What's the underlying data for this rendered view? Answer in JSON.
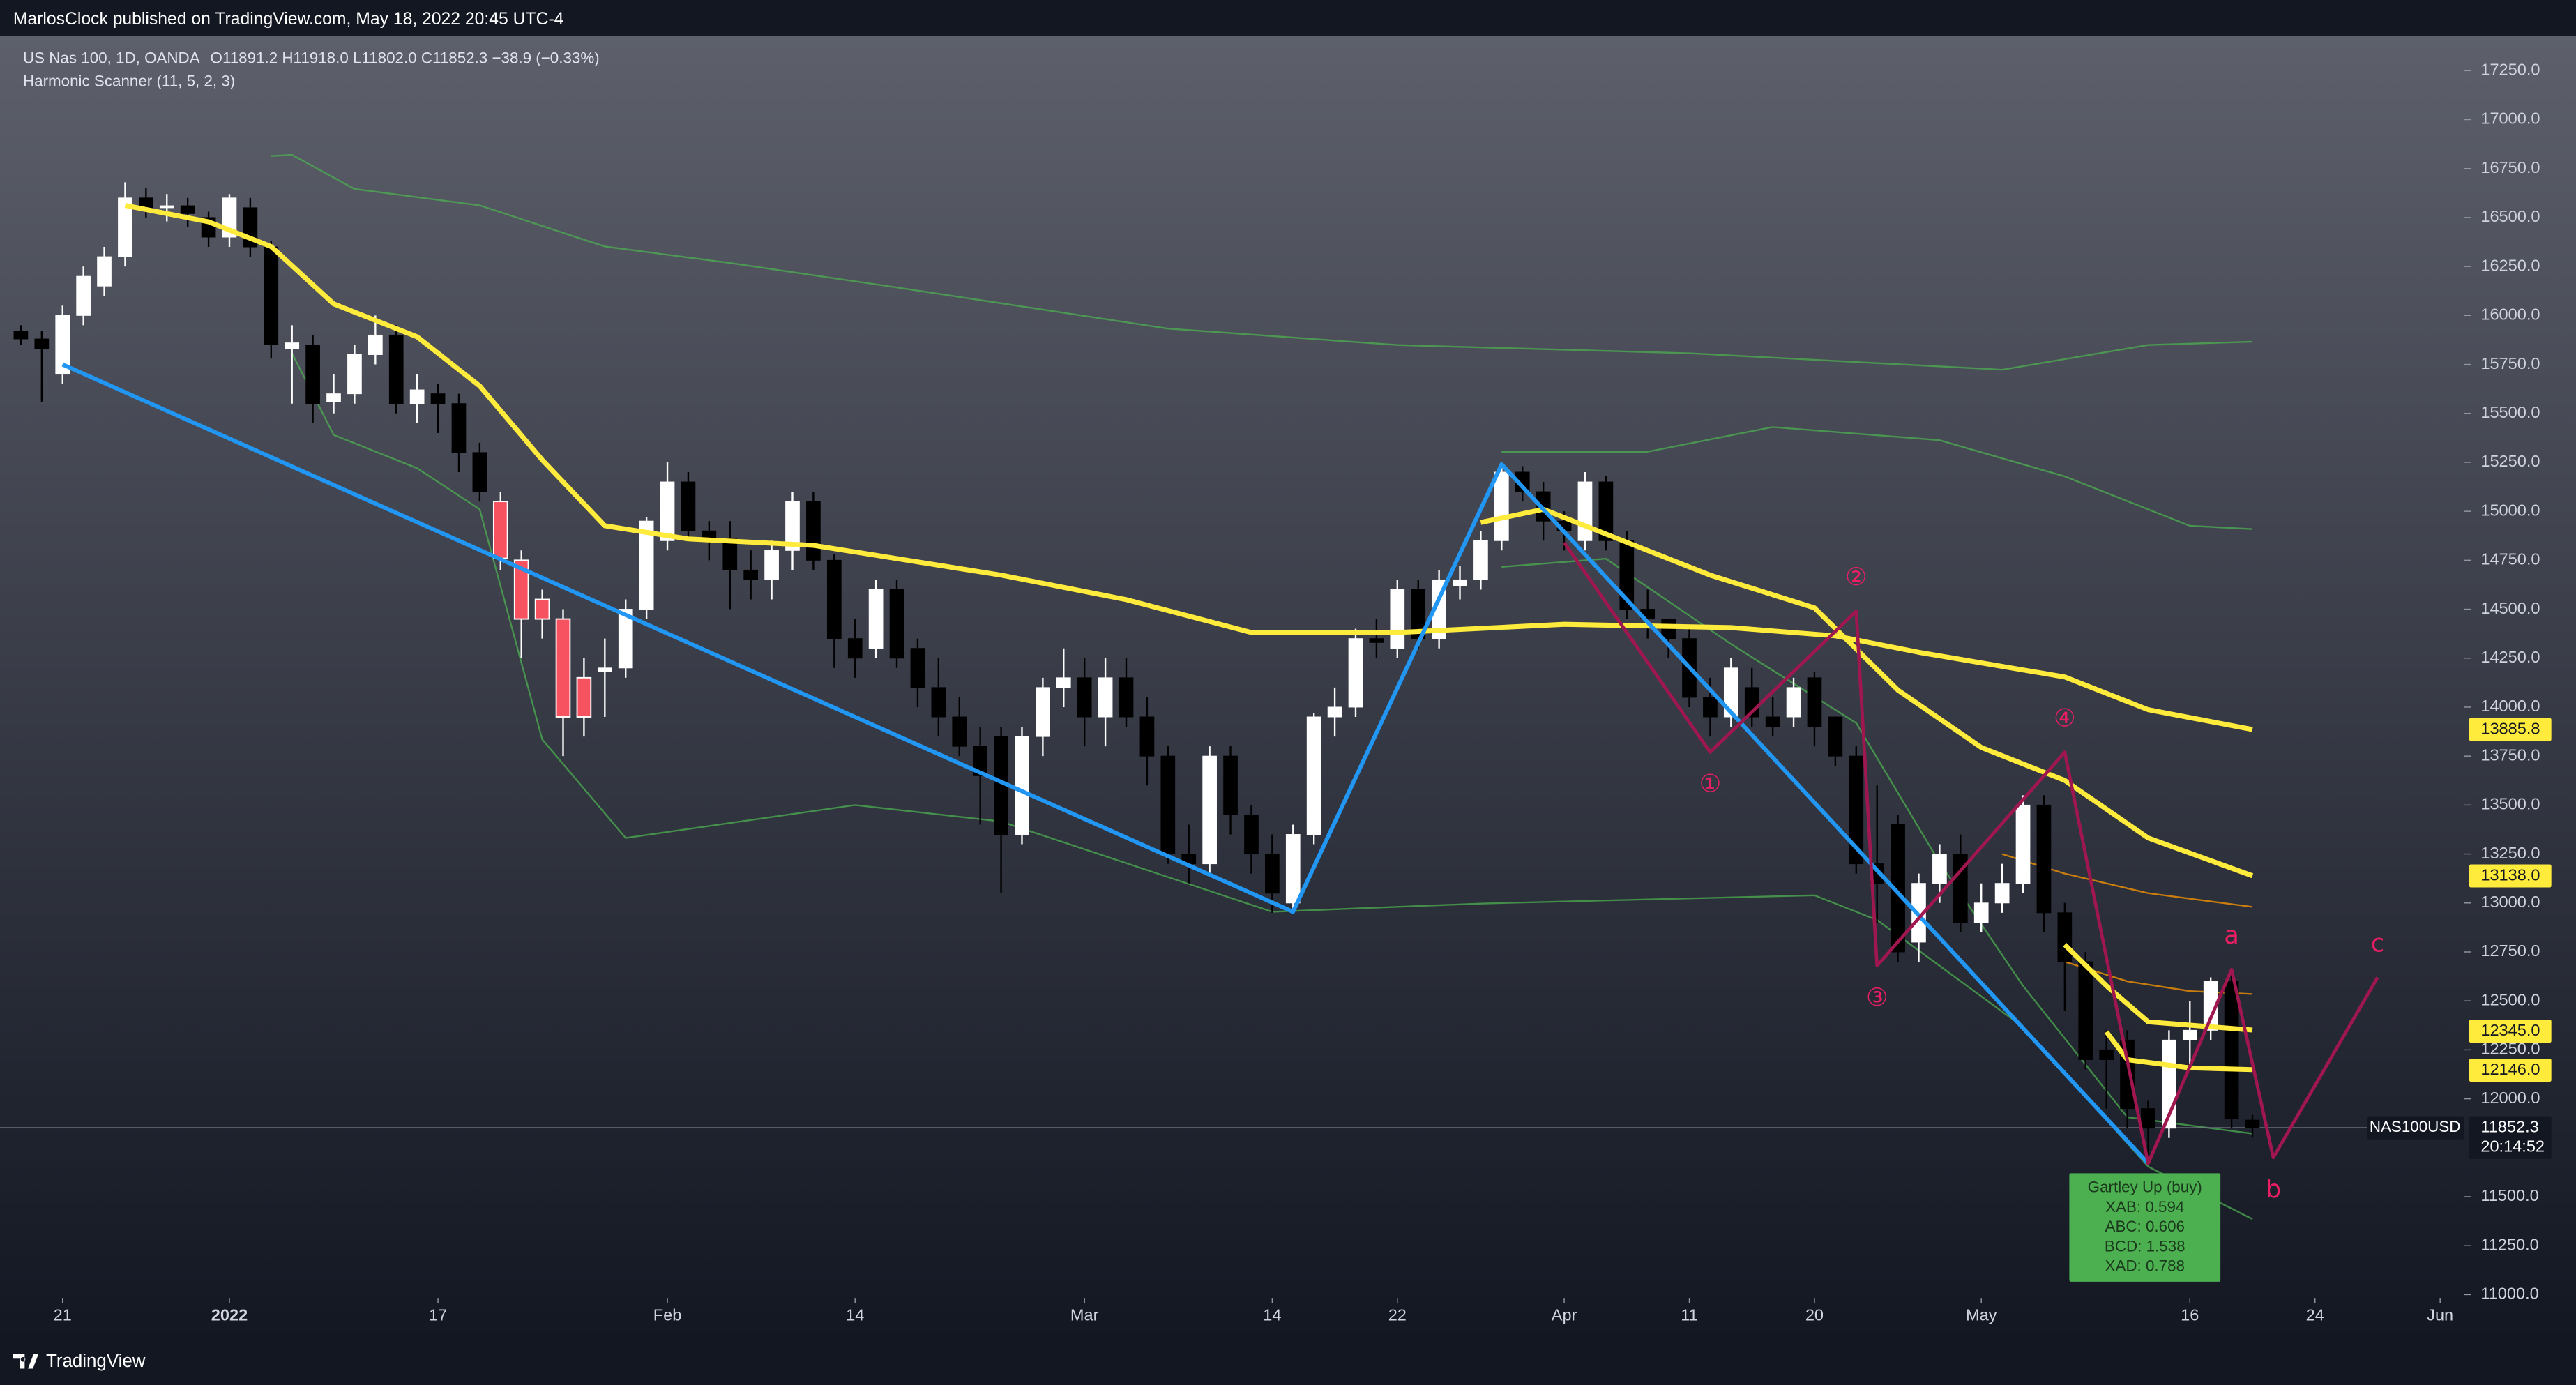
{
  "header": {
    "publisher": "MarlosClock published on TradingView.com, May 18, 2022 20:45 UTC-4"
  },
  "chart_data": {
    "type": "candlestick",
    "symbol": "US Nas 100, 1D, OANDA",
    "ohlc_legend": "O11891.2 H11918.0 L11802.0 C11852.3 −38.9 (−0.33%)",
    "indicator": "Harmonic Scanner (11, 5, 2, 3)",
    "open": [
      15920,
      15880,
      15700,
      16000,
      16150,
      16300,
      16600,
      16550,
      16560,
      16500,
      16400,
      16550,
      16350,
      15830,
      15850,
      15560,
      15600,
      15800,
      15900,
      15550,
      15600,
      15550,
      15300,
      15050,
      14750,
      14550,
      14450,
      14150,
      14180,
      14200,
      14500,
      14850,
      15150,
      14900,
      14860,
      14700,
      14650,
      14800,
      15050,
      14750,
      14350,
      14300,
      14600,
      14300,
      14100,
      13950,
      13800,
      13850,
      13350,
      13850,
      14100,
      14150,
      13950,
      14150,
      13950,
      13750,
      13250,
      13200,
      13750,
      13450,
      13250,
      13000,
      13350,
      13950,
      14000,
      14350,
      14300,
      14600,
      14350,
      14620,
      14650,
      14850,
      15200,
      15100,
      14950,
      14850,
      15150,
      14850,
      14500,
      14450,
      14350,
      14050,
      13950,
      14100,
      13950,
      13950,
      14150,
      13950,
      13750,
      13200,
      13400,
      12800,
      13100,
      13250,
      12900,
      13000,
      13100,
      13500,
      12950,
      12700,
      12250,
      12300,
      11950,
      11850,
      12300,
      12350,
      12600,
      11891.2
    ],
    "high": [
      15950,
      15920,
      16050,
      16250,
      16350,
      16680,
      16650,
      16620,
      16600,
      16530,
      16620,
      16600,
      16380,
      15950,
      15900,
      15700,
      15850,
      16000,
      15950,
      15700,
      15650,
      15600,
      15350,
      15100,
      14800,
      14600,
      14500,
      14250,
      14350,
      14550,
      14970,
      15250,
      15200,
      14950,
      14950,
      14800,
      14850,
      15100,
      15100,
      14780,
      14450,
      14650,
      14650,
      14350,
      14250,
      14050,
      13900,
      13900,
      13900,
      14150,
      14300,
      14250,
      14250,
      14250,
      14050,
      13800,
      13400,
      13800,
      13800,
      13500,
      13350,
      13400,
      13970,
      14100,
      14400,
      14450,
      14650,
      14650,
      14700,
      14720,
      14900,
      15250,
      15230,
      15150,
      15000,
      15200,
      15180,
      14900,
      14600,
      14450,
      14400,
      14150,
      14250,
      14200,
      14050,
      14150,
      14180,
      13950,
      13800,
      13600,
      13450,
      13150,
      13300,
      13350,
      13100,
      13200,
      13550,
      13550,
      13000,
      12750,
      12350,
      12350,
      11990,
      12350,
      12500,
      12620,
      12650,
      11918
    ],
    "low": [
      15850,
      15560,
      15650,
      15950,
      16100,
      16250,
      16500,
      16480,
      16450,
      16350,
      16350,
      16300,
      15780,
      15550,
      15450,
      15500,
      15550,
      15750,
      15500,
      15450,
      15400,
      15200,
      15050,
      14700,
      14250,
      14350,
      13750,
      13850,
      13950,
      14150,
      14450,
      14800,
      14850,
      14750,
      14500,
      14550,
      14550,
      14700,
      14700,
      14200,
      14150,
      14250,
      14200,
      14000,
      13850,
      13750,
      13400,
      13050,
      13300,
      13750,
      14000,
      13800,
      13800,
      13900,
      13600,
      13200,
      13100,
      13150,
      13350,
      13150,
      12950,
      12950,
      13300,
      13850,
      13950,
      14250,
      14250,
      14300,
      14300,
      14550,
      14600,
      14800,
      15050,
      14850,
      14800,
      14800,
      14800,
      14450,
      14350,
      14250,
      14000,
      13850,
      13900,
      13900,
      13850,
      13900,
      13800,
      13700,
      13150,
      12900,
      12700,
      12700,
      13000,
      12850,
      12850,
      12950,
      13050,
      12850,
      12450,
      12150,
      11950,
      11850,
      11700,
      11800,
      12150,
      12300,
      11850,
      11802
    ],
    "close": [
      15880,
      15830,
      16000,
      16200,
      16300,
      16600,
      16550,
      16560,
      16520,
      16400,
      16600,
      16350,
      15850,
      15860,
      15550,
      15600,
      15800,
      15900,
      15550,
      15620,
      15550,
      15300,
      15100,
      14760,
      14450,
      14450,
      13950,
      13950,
      14200,
      14500,
      14950,
      15150,
      14900,
      14860,
      14700,
      14650,
      14800,
      15050,
      14750,
      14350,
      14250,
      14600,
      14250,
      14100,
      13950,
      13800,
      13650,
      13350,
      13850,
      14100,
      14150,
      13950,
      14150,
      13950,
      13750,
      13250,
      13200,
      13750,
      13450,
      13250,
      13050,
      13350,
      13950,
      14000,
      14350,
      14330,
      14600,
      14350,
      14650,
      14650,
      14850,
      15200,
      15100,
      14950,
      14900,
      15150,
      14850,
      14500,
      14450,
      14350,
      14050,
      13950,
      14200,
      13950,
      13900,
      14100,
      13900,
      13750,
      13200,
      13100,
      12750,
      13100,
      13250,
      12900,
      13000,
      13100,
      13500,
      12950,
      12700,
      12200,
      12200,
      11950,
      11850,
      12300,
      12350,
      12600,
      11900,
      11852.3
    ],
    "up_color": "#ffffff",
    "down_color": "#000000",
    "highlight": {
      "from": 23,
      "to": 27,
      "color": "#f7525f"
    },
    "xlim": [
      -1,
      117
    ],
    "xticks": [
      {
        "value": 2,
        "label": "21"
      },
      {
        "value": 10,
        "label": "2022"
      },
      {
        "value": 20,
        "label": "17"
      },
      {
        "value": 31,
        "label": "Feb"
      },
      {
        "value": 40,
        "label": "14"
      },
      {
        "value": 51,
        "label": "Mar"
      },
      {
        "value": 60,
        "label": "14"
      },
      {
        "value": 66,
        "label": "22"
      },
      {
        "value": 74,
        "label": "Apr"
      },
      {
        "value": 80,
        "label": "11"
      },
      {
        "value": 86,
        "label": "20"
      },
      {
        "value": 94,
        "label": "May"
      },
      {
        "value": 104,
        "label": "16"
      },
      {
        "value": 110,
        "label": "24"
      },
      {
        "value": 116,
        "label": "Jun"
      }
    ],
    "ylim": [
      11000,
      17250
    ],
    "yticks": [
      {
        "value": 11000,
        "label": "11000.0"
      },
      {
        "value": 11250,
        "label": "11250.0"
      },
      {
        "value": 11500,
        "label": "11500.0"
      },
      {
        "value": 12000,
        "label": "12000.0"
      },
      {
        "value": 12250,
        "label": "12250.0"
      },
      {
        "value": 12500,
        "label": "12500.0"
      },
      {
        "value": 12750,
        "label": "12750.0"
      },
      {
        "value": 13000,
        "label": "13000.0"
      },
      {
        "value": 13250,
        "label": "13250.0"
      },
      {
        "value": 13500,
        "label": "13500.0"
      },
      {
        "value": 13750,
        "label": "13750.0"
      },
      {
        "value": 14000,
        "label": "14000.0"
      },
      {
        "value": 14250,
        "label": "14250.0"
      },
      {
        "value": 14500,
        "label": "14500.0"
      },
      {
        "value": 14750,
        "label": "14750.0"
      },
      {
        "value": 15000,
        "label": "15000.0"
      },
      {
        "value": 15250,
        "label": "15250.0"
      },
      {
        "value": 15500,
        "label": "15500.0"
      },
      {
        "value": 15750,
        "label": "15750.0"
      },
      {
        "value": 16000,
        "label": "16000.0"
      },
      {
        "value": 16250,
        "label": "16250.0"
      },
      {
        "value": 16500,
        "label": "16500.0"
      },
      {
        "value": 16750,
        "label": "16750.0"
      },
      {
        "value": 17000,
        "label": "17000.0"
      },
      {
        "value": 17250,
        "label": "17250.0"
      }
    ],
    "overlays": [
      {
        "color": "#4caf50",
        "style": "thin",
        "x": [
          12,
          13,
          16,
          22,
          28,
          34,
          42,
          55,
          66,
          80,
          95,
          102,
          107
        ],
        "values": [
          16814,
          16820,
          16646,
          16562,
          16352,
          16268,
          16143,
          15933,
          15849,
          15807,
          15723,
          15849,
          15866
        ]
      },
      {
        "color": "#4caf50",
        "style": "thin",
        "x": [
          13,
          15,
          19,
          22,
          25,
          29,
          40,
          47,
          60,
          70,
          86,
          89,
          96,
          102,
          107
        ],
        "values": [
          15807,
          15390,
          15220,
          15010,
          13835,
          13332,
          13500,
          13416,
          12955,
          12997,
          13039,
          12913,
          12367,
          11654,
          11386
        ]
      },
      {
        "color": "#4caf50",
        "style": "thin",
        "x": [
          71,
          78,
          84,
          92,
          98,
          104,
          107
        ],
        "values": [
          15304,
          15304,
          15430,
          15363,
          15178,
          14926,
          14909
        ]
      },
      {
        "color": "#4caf50",
        "style": "thin",
        "x": [
          71,
          76,
          82,
          88,
          92,
          96,
          101,
          107
        ],
        "values": [
          14716,
          14758,
          14322,
          13919,
          13206,
          12577,
          11906,
          11822
        ]
      },
      {
        "color": "#ff9800",
        "style": "thin",
        "x": [
          95,
          98,
          102,
          107
        ],
        "values": [
          13250,
          13150,
          13050,
          12980
        ]
      },
      {
        "color": "#ff9800",
        "style": "thin",
        "x": [
          98,
          101,
          104,
          107
        ],
        "values": [
          12700,
          12600,
          12550,
          12535
        ]
      },
      {
        "color": "#ffeb3b",
        "style": "bold",
        "x": [
          5,
          9,
          12,
          15,
          19,
          22,
          25,
          28,
          32,
          38,
          47,
          53,
          59,
          66,
          74,
          82,
          87,
          91,
          98,
          102,
          107
        ],
        "values": [
          16562,
          16478,
          16352,
          16059,
          15891,
          15640,
          15262,
          14926,
          14859,
          14826,
          14674,
          14549,
          14381,
          14381,
          14423,
          14406,
          14364,
          14280,
          14154,
          13987,
          13886
        ]
      },
      {
        "color": "#ffeb3b",
        "style": "bold",
        "x": [
          70,
          73,
          76,
          81,
          86,
          90,
          94,
          98,
          102,
          107
        ],
        "values": [
          14943,
          15010,
          14884,
          14674,
          14507,
          14087,
          13794,
          13626,
          13332,
          13139
        ]
      },
      {
        "color": "#ffeb3b",
        "style": "bold",
        "x": [
          98,
          100,
          102,
          107
        ],
        "values": [
          12787,
          12577,
          12393,
          12351
        ]
      },
      {
        "color": "#ffeb3b",
        "style": "bold",
        "x": [
          100,
          101,
          104,
          107
        ],
        "values": [
          12342,
          12200,
          12158,
          12149
        ]
      }
    ],
    "zigzag": {
      "color": "#2196f3",
      "x": [
        2,
        61,
        71,
        102
      ],
      "values": [
        15750,
        12955,
        15240,
        11670
      ]
    },
    "pattern": {
      "color": "#a0174f",
      "label_color": "#e91e63",
      "x": [
        74,
        81,
        88,
        89,
        98,
        102,
        106,
        108,
        113
      ],
      "values": [
        14840,
        13770,
        14490,
        12680,
        13770,
        11670,
        12660,
        11700,
        12620
      ],
      "labels": [
        null,
        "①",
        "②",
        "③",
        "④",
        null,
        "a",
        "b",
        "c"
      ]
    },
    "price_labels": [
      {
        "value": 13885.8,
        "color": "#ffeb3b"
      },
      {
        "value": 13138,
        "label": "13138.0",
        "color": "#ffeb3b"
      },
      {
        "value": 12345,
        "label": "12345.0",
        "color": "#ffeb3b"
      },
      {
        "value": 12146,
        "label": "12146.0",
        "color": "#ffeb3b"
      }
    ],
    "last_price": {
      "symbol": "NAS100USD",
      "value": 11852.3,
      "countdown": "20:14:52"
    },
    "gartley": {
      "title": "Gartley Up (buy)",
      "lines": [
        "XAB: 0.594",
        "ABC: 0.606",
        "BCD: 1.538",
        "XAD: 0.788"
      ],
      "color": "#4caf50"
    }
  },
  "footer": {
    "brand": "TradingView"
  }
}
